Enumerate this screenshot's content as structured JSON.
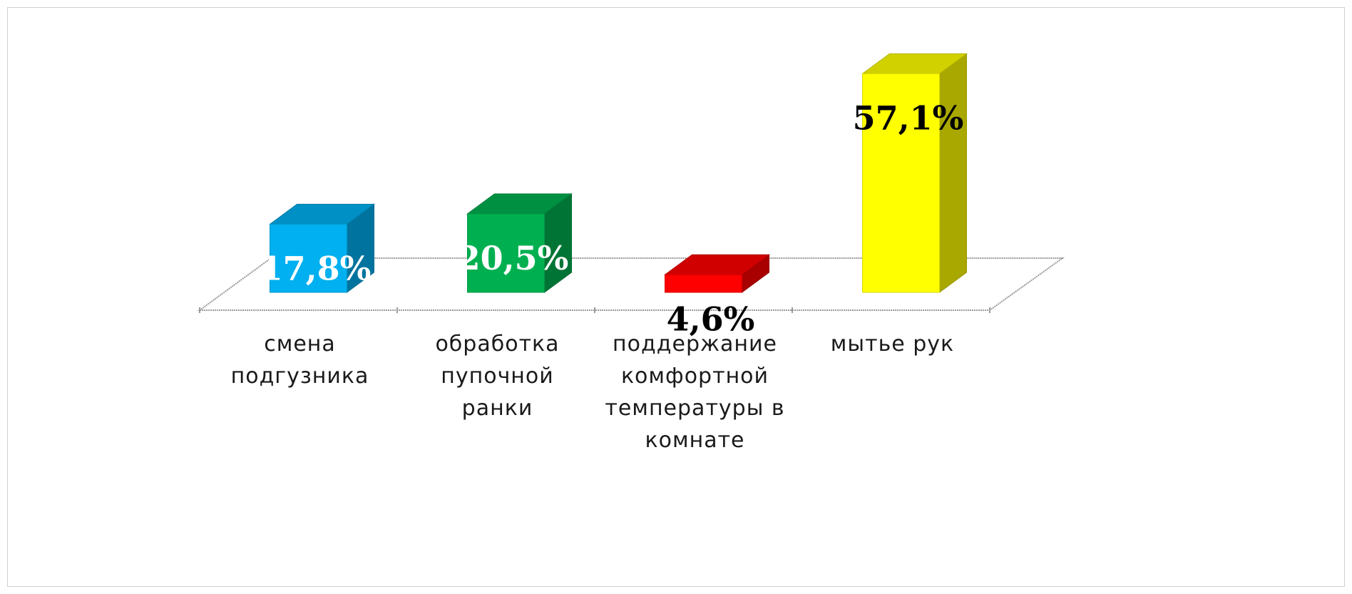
{
  "chart_data": {
    "type": "bar",
    "categories": [
      [
        "смена",
        "подгузника"
      ],
      [
        "обработка",
        "пупочной",
        "ранки"
      ],
      [
        "поддержание",
        "комфортной",
        "температуры в",
        "комнате"
      ],
      [
        "мытье рук"
      ]
    ],
    "values": [
      17.8,
      20.5,
      4.6,
      57.1
    ],
    "value_labels": [
      "17,8%",
      "20,5%",
      "4,6%",
      "57,1%"
    ],
    "colors": [
      "#00b0f0",
      "#00b050",
      "#ff0000",
      "#ffff00"
    ],
    "label_colors": [
      "#ffffff",
      "#ffffff",
      "#000000",
      "#000000"
    ],
    "title": "",
    "xlabel": "",
    "ylabel": "",
    "style": "3d-column",
    "grid": false,
    "legend": "none"
  }
}
